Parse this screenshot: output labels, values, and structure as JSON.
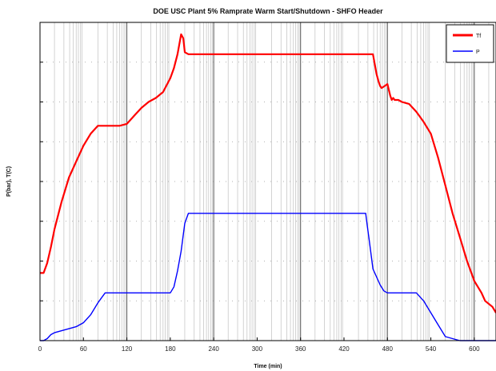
{
  "chart_data": {
    "type": "line",
    "title": "DOE USC Plant 5% Ramprate Warm Start/Shutdown - SHFO Header",
    "xlabel": "Time (min)",
    "ylabel": "P(bar), T(C)",
    "xlim": [
      0,
      630
    ],
    "ylim": [
      0,
      800
    ],
    "x_ticks": [
      0,
      60,
      120,
      180,
      240,
      300,
      360,
      420,
      480,
      540,
      600
    ],
    "x_tick_labels": [
      "0",
      "60",
      "120",
      "180",
      "240",
      "300",
      "360",
      "420",
      "480",
      "540",
      "600"
    ],
    "grid": {
      "minor_verticals": true,
      "horizontal": "dotted"
    },
    "legend_position": "top-right",
    "series": [
      {
        "name": "Tf",
        "color": "#ff0000",
        "x": [
          0,
          5,
          10,
          15,
          20,
          30,
          40,
          50,
          60,
          70,
          80,
          90,
          100,
          110,
          120,
          130,
          140,
          150,
          160,
          170,
          180,
          185,
          190,
          195,
          198,
          200,
          205,
          210,
          230,
          260,
          300,
          360,
          420,
          440,
          460,
          462,
          465,
          468,
          470,
          472,
          476,
          480,
          482,
          484,
          486,
          488,
          490,
          495,
          500,
          510,
          520,
          530,
          540,
          550,
          560,
          570,
          580,
          590,
          600,
          610,
          615,
          625,
          630
        ],
        "y": [
          170,
          170,
          195,
          235,
          280,
          350,
          410,
          450,
          490,
          520,
          540,
          540,
          540,
          540,
          545,
          565,
          585,
          600,
          610,
          625,
          660,
          685,
          720,
          770,
          760,
          725,
          720,
          720,
          720,
          720,
          720,
          720,
          720,
          720,
          720,
          700,
          670,
          650,
          640,
          635,
          640,
          645,
          630,
          615,
          605,
          610,
          605,
          605,
          600,
          595,
          575,
          550,
          520,
          460,
          390,
          320,
          260,
          200,
          150,
          120,
          100,
          85,
          70
        ]
      },
      {
        "name": "P",
        "color": "#0000ff",
        "x": [
          0,
          5,
          10,
          15,
          20,
          30,
          40,
          50,
          60,
          70,
          80,
          90,
          95,
          100,
          110,
          120,
          130,
          140,
          150,
          160,
          170,
          180,
          185,
          190,
          195,
          200,
          205,
          210,
          220,
          240,
          300,
          360,
          420,
          450,
          452,
          455,
          460,
          465,
          470,
          475,
          480,
          490,
          500,
          510,
          520,
          530,
          540,
          550,
          560,
          570,
          580,
          600,
          630
        ],
        "y": [
          0,
          0,
          5,
          15,
          20,
          25,
          30,
          35,
          45,
          65,
          95,
          120,
          120,
          120,
          120,
          120,
          120,
          120,
          120,
          120,
          120,
          120,
          135,
          175,
          225,
          295,
          320,
          320,
          320,
          320,
          320,
          320,
          320,
          320,
          290,
          250,
          180,
          160,
          140,
          125,
          120,
          120,
          120,
          120,
          120,
          100,
          70,
          40,
          10,
          5,
          0,
          0,
          0
        ]
      }
    ]
  }
}
